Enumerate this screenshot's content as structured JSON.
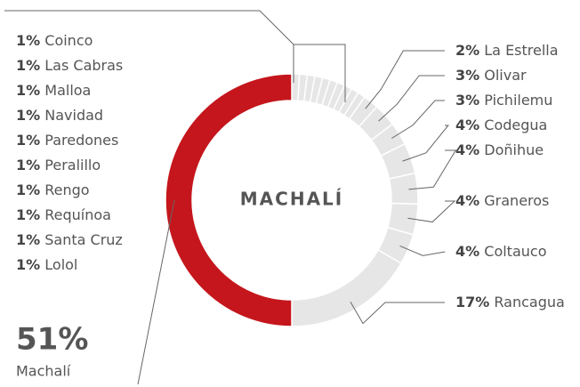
{
  "chart_data": {
    "type": "donut",
    "center_label": "MACHALÍ",
    "categories": [
      "Coinco",
      "Las Cabras",
      "Malloa",
      "Navidad",
      "Paredones",
      "Peralillo",
      "Rengo",
      "Requínoa",
      "Santa Cruz",
      "Lolol",
      "La Estrella",
      "Olivar",
      "Pichilemu",
      "Codegua",
      "Doñihue",
      "Graneros",
      "Coltauco",
      "Rancagua",
      "Machalí"
    ],
    "values": [
      1,
      1,
      1,
      1,
      1,
      1,
      1,
      1,
      1,
      1,
      2,
      3,
      3,
      4,
      4,
      4,
      4,
      17,
      51
    ],
    "value_labels": [
      "1%",
      "1%",
      "1%",
      "1%",
      "1%",
      "1%",
      "1%",
      "1%",
      "1%",
      "1%",
      "2%",
      "3%",
      "3%",
      "4%",
      "4%",
      "4%",
      "4%",
      "17%",
      "51%"
    ],
    "colors": [
      "#e6e6e6",
      "#e6e6e6",
      "#e6e6e6",
      "#e6e6e6",
      "#e6e6e6",
      "#e6e6e6",
      "#e6e6e6",
      "#e6e6e6",
      "#e6e6e6",
      "#e6e6e6",
      "#e6e6e6",
      "#e6e6e6",
      "#e6e6e6",
      "#e6e6e6",
      "#e6e6e6",
      "#e6e6e6",
      "#e6e6e6",
      "#e6e6e6",
      "#c4161c"
    ]
  }
}
